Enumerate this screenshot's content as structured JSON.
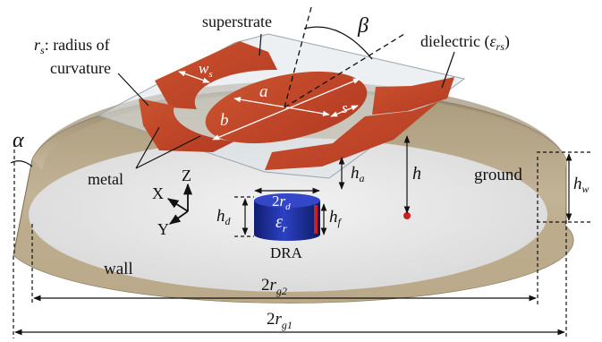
{
  "labels": {
    "superstrate": "superstrate",
    "radius_line1_symbol": "r",
    "radius_line1_sub": "s",
    "radius_line1_text": ": radius of",
    "radius_line2": "curvature",
    "dielectric_text": "dielectric (",
    "dielectric_symbol": "ε",
    "dielectric_sub": "rs",
    "dielectric_close": ")",
    "beta": "β",
    "alpha": "α",
    "ws_symbol": "w",
    "ws_sub": "s",
    "a": "a",
    "b": "b",
    "s": "s",
    "metal": "metal",
    "ground": "ground",
    "wall": "wall",
    "dra": "DRA",
    "h": "h",
    "ha_symbol": "h",
    "ha_sub": "a",
    "hw_symbol": "h",
    "hw_sub": "w",
    "hd_symbol": "h",
    "hd_sub": "d",
    "hf_symbol": "h",
    "hf_sub": "f",
    "rd_prefix": "2",
    "rd_symbol": "r",
    "rd_sub": "d",
    "er_symbol": "ε",
    "er_sub": "r",
    "rg2_prefix": "2",
    "rg2_symbol": "r",
    "rg2_sub": "g2",
    "rg1_prefix": "2",
    "rg1_symbol": "r",
    "rg1_sub": "g1",
    "axis_z": "Z",
    "axis_x": "X",
    "axis_y": "Y"
  },
  "colors": {
    "wall_outer": "#b8a88a",
    "wall_inner": "#cdbfa3",
    "ground": "#e6e6e6",
    "metal": "#c2452a",
    "superstrate": "#dce3ea",
    "dra_blue": "#1e2f9c",
    "feed_red": "#cc1f1f"
  }
}
